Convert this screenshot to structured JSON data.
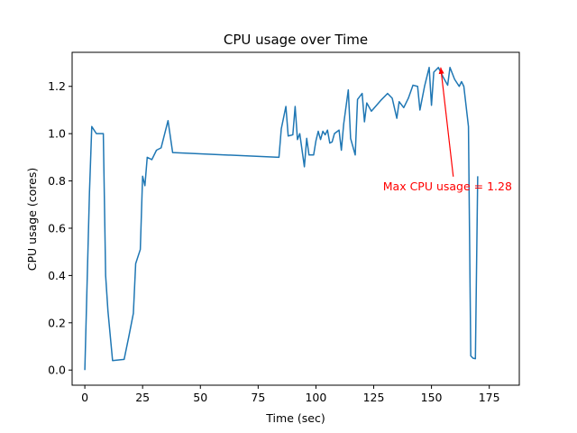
{
  "chart_data": {
    "type": "line",
    "title": "CPU usage over Time",
    "xlabel": "Time (sec)",
    "ylabel": "CPU usage (cores)",
    "xlim": [
      -5.5,
      188
    ],
    "ylim": [
      -0.064,
      1.344
    ],
    "xticks": [
      0,
      25,
      50,
      75,
      100,
      125,
      150,
      175
    ],
    "yticks": [
      0.0,
      0.2,
      0.4,
      0.6,
      0.8,
      1.0,
      1.2
    ],
    "ytick_labels": [
      "0.0",
      "0.2",
      "0.4",
      "0.6",
      "0.8",
      "1.0",
      "1.2"
    ],
    "grid": false,
    "legend": "none",
    "series": [
      {
        "color": "#1f77b4",
        "points": [
          [
            0,
            0.0
          ],
          [
            2,
            0.75
          ],
          [
            3,
            1.03
          ],
          [
            5,
            1.0
          ],
          [
            8,
            1.0
          ],
          [
            9,
            0.4
          ],
          [
            10,
            0.25
          ],
          [
            12,
            0.04
          ],
          [
            17,
            0.045
          ],
          [
            19,
            0.14
          ],
          [
            21,
            0.24
          ],
          [
            22,
            0.45
          ],
          [
            24,
            0.51
          ],
          [
            25,
            0.82
          ],
          [
            26,
            0.78
          ],
          [
            27,
            0.9
          ],
          [
            29,
            0.89
          ],
          [
            31,
            0.93
          ],
          [
            33,
            0.94
          ],
          [
            36,
            1.055
          ],
          [
            38,
            0.92
          ],
          [
            84,
            0.9
          ],
          [
            85,
            1.02
          ],
          [
            87,
            1.115
          ],
          [
            88,
            0.99
          ],
          [
            90,
            0.995
          ],
          [
            91,
            1.115
          ],
          [
            92,
            0.975
          ],
          [
            93,
            1.0
          ],
          [
            95,
            0.86
          ],
          [
            96,
            0.98
          ],
          [
            97,
            0.91
          ],
          [
            99,
            0.91
          ],
          [
            100,
            0.97
          ],
          [
            101,
            1.01
          ],
          [
            102,
            0.975
          ],
          [
            103,
            1.01
          ],
          [
            104,
            0.995
          ],
          [
            105,
            1.015
          ],
          [
            106,
            0.96
          ],
          [
            107,
            0.965
          ],
          [
            108,
            1.0
          ],
          [
            110,
            1.015
          ],
          [
            111,
            0.93
          ],
          [
            112,
            1.04
          ],
          [
            114,
            1.185
          ],
          [
            115,
            0.98
          ],
          [
            117,
            0.91
          ],
          [
            118,
            1.145
          ],
          [
            120,
            1.17
          ],
          [
            121,
            1.05
          ],
          [
            122,
            1.13
          ],
          [
            124,
            1.095
          ],
          [
            128,
            1.14
          ],
          [
            131,
            1.17
          ],
          [
            133,
            1.15
          ],
          [
            135,
            1.065
          ],
          [
            136,
            1.135
          ],
          [
            138,
            1.11
          ],
          [
            140,
            1.15
          ],
          [
            142,
            1.205
          ],
          [
            144,
            1.2
          ],
          [
            145,
            1.1
          ],
          [
            147,
            1.2
          ],
          [
            149,
            1.28
          ],
          [
            150,
            1.12
          ],
          [
            151,
            1.26
          ],
          [
            153,
            1.28
          ],
          [
            155,
            1.24
          ],
          [
            157,
            1.205
          ],
          [
            158,
            1.28
          ],
          [
            160,
            1.23
          ],
          [
            162,
            1.2
          ],
          [
            163,
            1.22
          ],
          [
            164,
            1.2
          ],
          [
            166,
            1.03
          ],
          [
            167,
            0.06
          ],
          [
            168,
            0.05
          ],
          [
            169,
            0.048
          ],
          [
            170,
            0.82
          ]
        ]
      }
    ],
    "annotation": {
      "text": "Max CPU usage = 1.28",
      "color": "#ff0000",
      "xy": [
        154,
        1.28
      ],
      "xytext": [
        129,
        0.78
      ]
    }
  }
}
